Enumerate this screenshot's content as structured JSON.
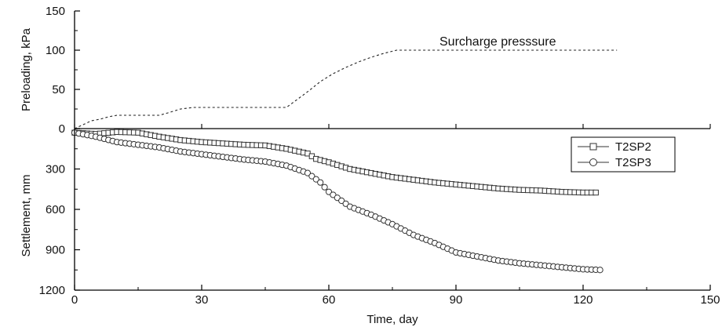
{
  "chart_data": [
    {
      "type": "line",
      "panel": "top",
      "ylabel": "Preloading, kPa",
      "xlim": [
        0,
        150
      ],
      "ylim": [
        0,
        150
      ],
      "yticks": [
        0,
        50,
        100,
        150
      ],
      "series": [
        {
          "name": "Surcharge presssure",
          "style": "dashed",
          "x": [
            0,
            2,
            4,
            6,
            8,
            10,
            20,
            22,
            25,
            28,
            50,
            52,
            55,
            58,
            61,
            64,
            67,
            70,
            73,
            76,
            128
          ],
          "y": [
            0,
            5,
            10,
            12,
            15,
            17,
            17,
            20,
            25,
            27,
            27,
            35,
            47,
            60,
            70,
            78,
            85,
            91,
            96,
            100,
            100
          ]
        }
      ],
      "annotation": "Surcharge presssure"
    },
    {
      "type": "line",
      "panel": "bottom",
      "xlabel": "Time, day",
      "ylabel": "Settlement, mm",
      "xlim": [
        0,
        150
      ],
      "ylim": [
        0,
        1200
      ],
      "y_inverted": true,
      "xticks": [
        0,
        30,
        60,
        90,
        120,
        150
      ],
      "yticks": [
        0,
        300,
        600,
        900,
        1200
      ],
      "legend_position": "top-right",
      "series": [
        {
          "name": "T2SP2",
          "marker": "square",
          "x": [
            0,
            5,
            10,
            15,
            20,
            25,
            30,
            35,
            40,
            45,
            50,
            55,
            57,
            60,
            65,
            70,
            75,
            80,
            85,
            90,
            95,
            100,
            105,
            110,
            115,
            120,
            123
          ],
          "y": [
            30,
            40,
            25,
            30,
            60,
            85,
            100,
            110,
            120,
            125,
            150,
            185,
            225,
            250,
            300,
            330,
            360,
            380,
            400,
            415,
            430,
            445,
            455,
            460,
            470,
            475,
            475
          ]
        },
        {
          "name": "T2SP3",
          "marker": "circle",
          "x": [
            0,
            5,
            10,
            15,
            20,
            25,
            30,
            35,
            40,
            45,
            50,
            55,
            58,
            60,
            65,
            70,
            75,
            80,
            85,
            90,
            95,
            100,
            105,
            110,
            115,
            120,
            124
          ],
          "y": [
            30,
            60,
            100,
            120,
            140,
            170,
            190,
            210,
            230,
            245,
            275,
            330,
            400,
            470,
            580,
            640,
            710,
            790,
            850,
            920,
            950,
            980,
            1000,
            1015,
            1030,
            1045,
            1050
          ]
        }
      ]
    }
  ]
}
